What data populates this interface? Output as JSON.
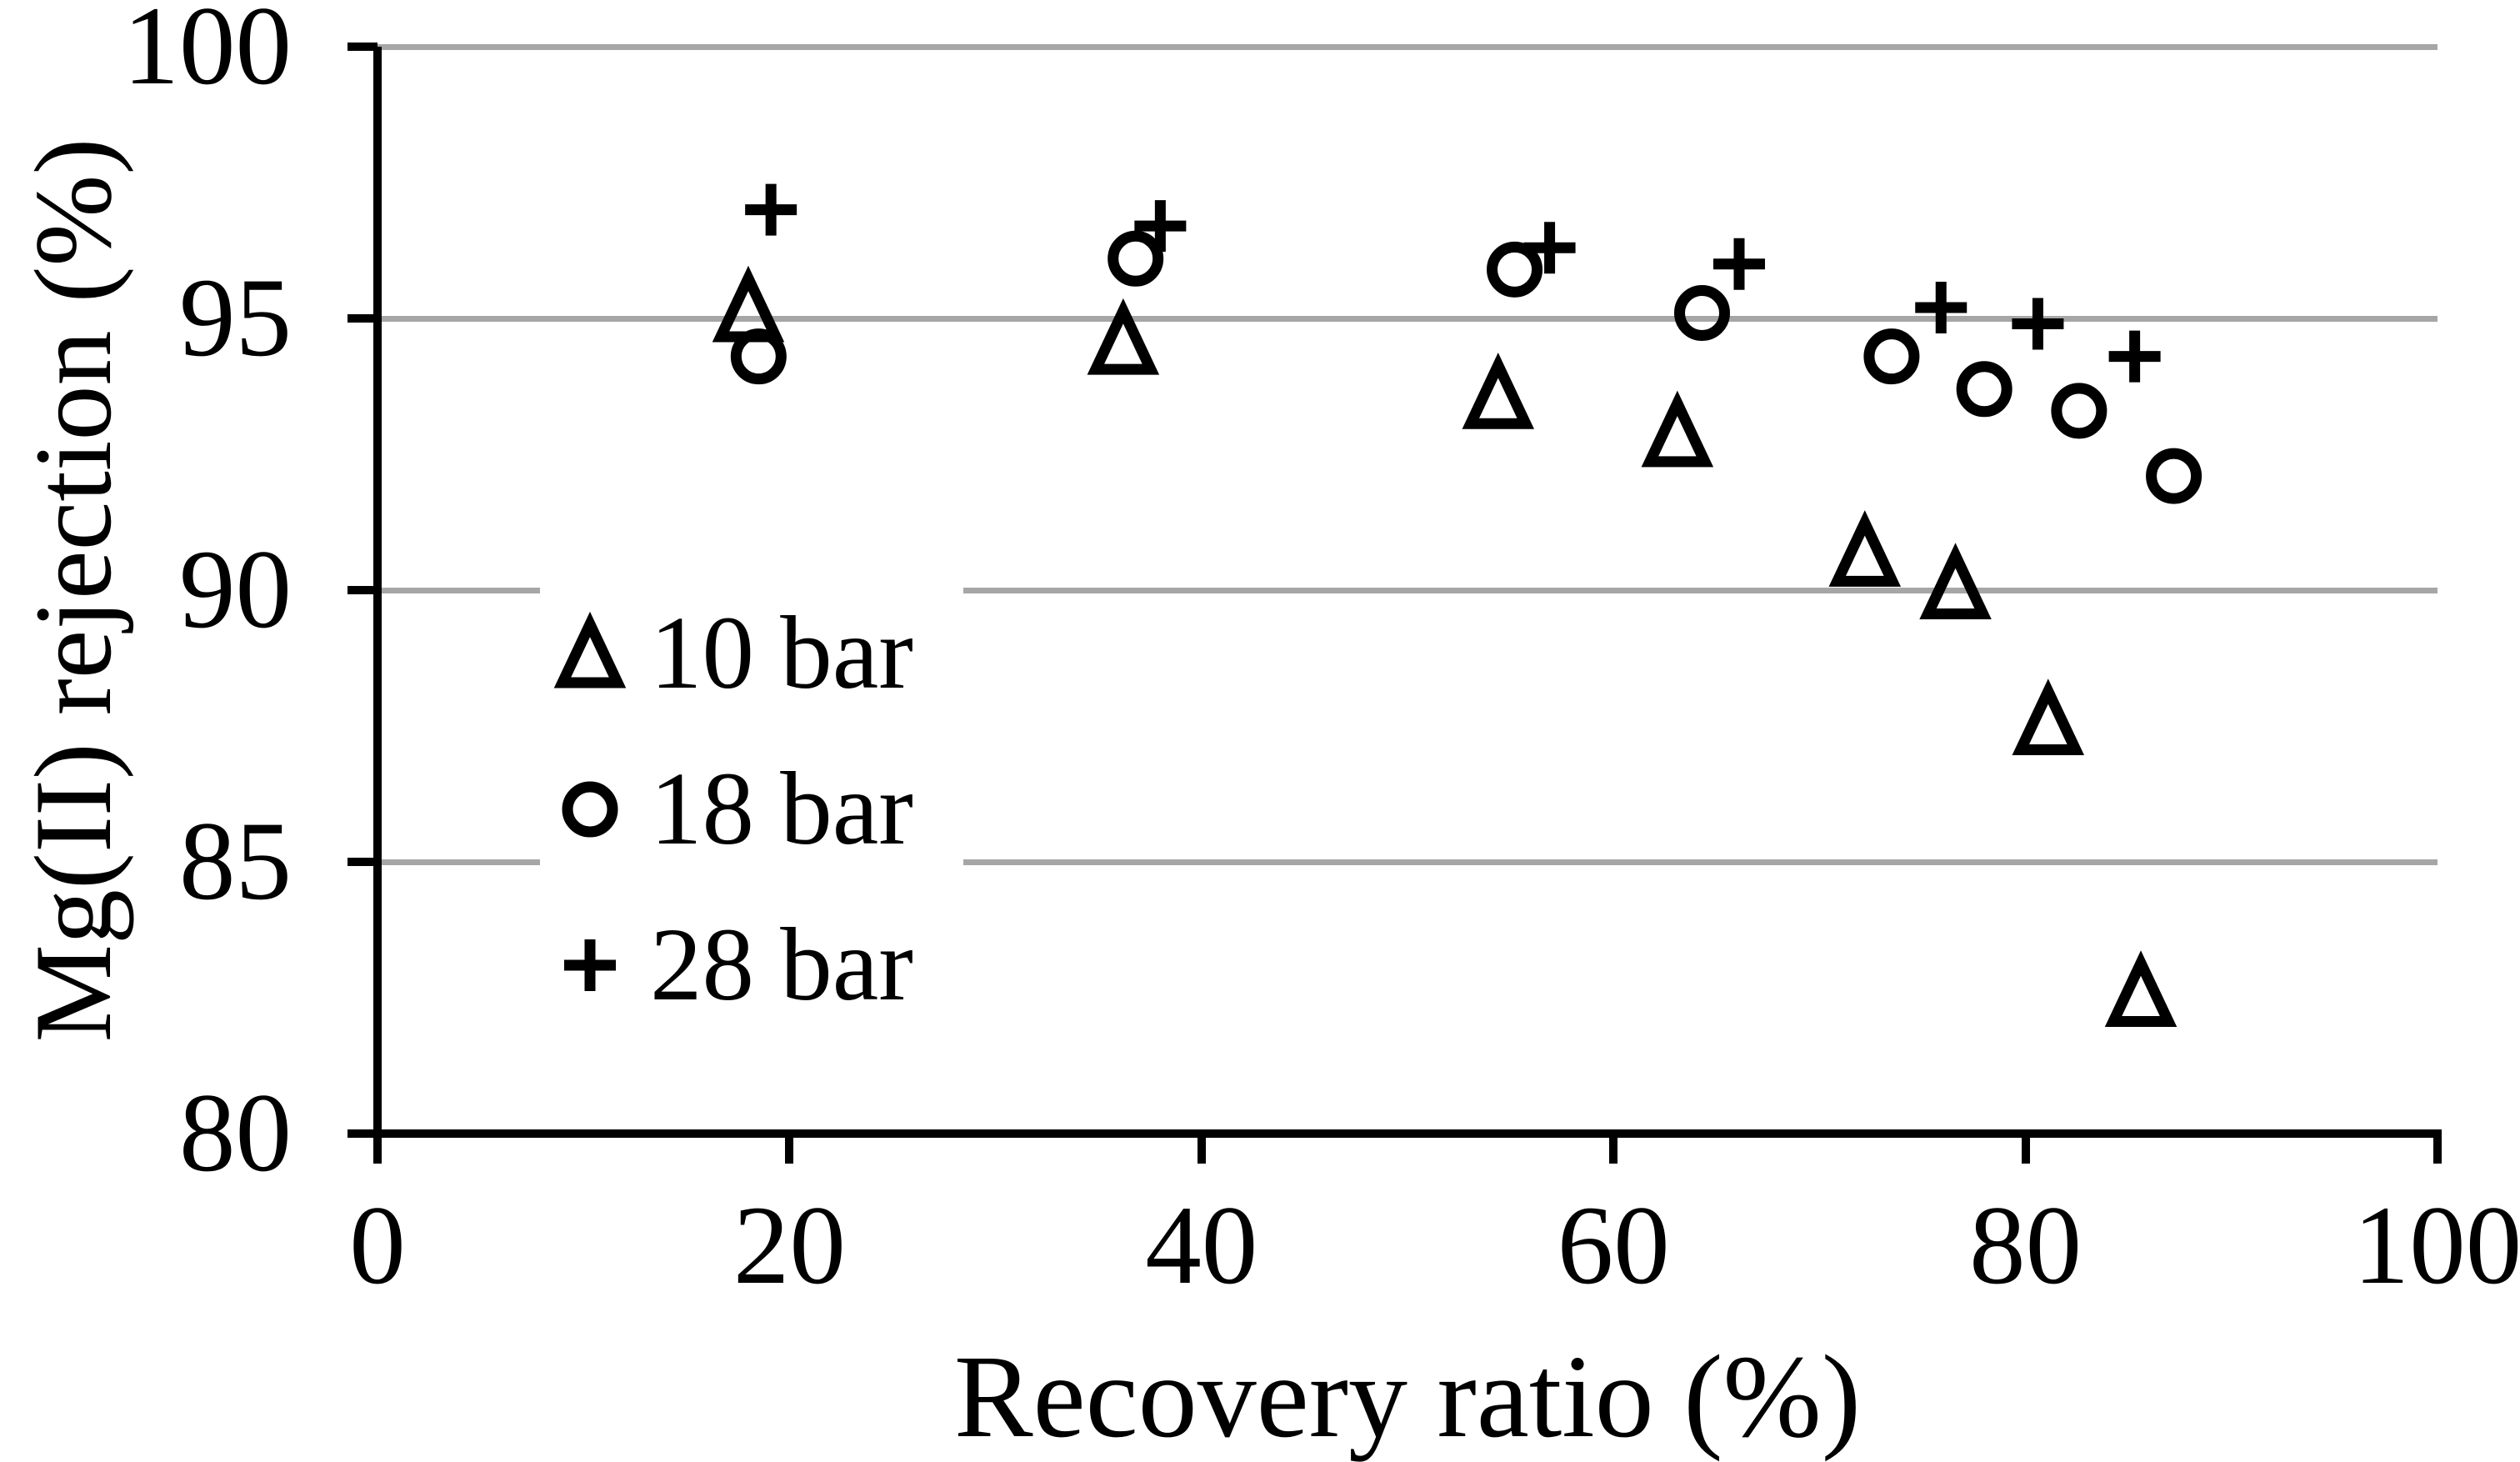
{
  "chart_data": {
    "type": "scatter",
    "title": "",
    "xlabel": "Recovery ratio (%)",
    "ylabel": "Mg(II) rejection (%)",
    "xlim": [
      0,
      100
    ],
    "ylim": [
      80,
      100
    ],
    "x_ticks": [
      0,
      20,
      40,
      60,
      80,
      100
    ],
    "y_ticks": [
      100,
      95,
      90,
      85,
      80
    ],
    "gridlines": {
      "axis": "y",
      "values": [
        100,
        95,
        90,
        85
      ],
      "color": "#a6a6a6"
    },
    "legend_position": "inside lower-left",
    "series": [
      {
        "name": "10 bar",
        "marker": "triangle",
        "color": "#000000",
        "points": [
          [
            18.0,
            95.2
          ],
          [
            36.2,
            94.6
          ],
          [
            54.4,
            93.6
          ],
          [
            63.1,
            92.9
          ],
          [
            72.2,
            90.7
          ],
          [
            76.6,
            90.1
          ],
          [
            81.1,
            87.6
          ],
          [
            85.6,
            82.6
          ]
        ]
      },
      {
        "name": "18 bar",
        "marker": "circle",
        "color": "#000000",
        "points": [
          [
            18.5,
            94.3
          ],
          [
            36.8,
            96.1
          ],
          [
            55.2,
            95.9
          ],
          [
            64.3,
            95.1
          ],
          [
            73.5,
            94.3
          ],
          [
            78.0,
            93.7
          ],
          [
            82.6,
            93.3
          ],
          [
            87.2,
            92.1
          ]
        ]
      },
      {
        "name": "28 bar",
        "marker": "plus",
        "color": "#000000",
        "points": [
          [
            19.1,
            97.0
          ],
          [
            38.0,
            96.7
          ],
          [
            56.9,
            96.3
          ],
          [
            66.1,
            96.0
          ],
          [
            75.9,
            95.2
          ],
          [
            80.6,
            94.9
          ],
          [
            85.3,
            94.3
          ]
        ]
      }
    ]
  },
  "colors": {
    "background": "#ffffff",
    "axis": "#000000",
    "gridline": "#a6a6a6",
    "marker": "#000000",
    "text": "#000000"
  }
}
